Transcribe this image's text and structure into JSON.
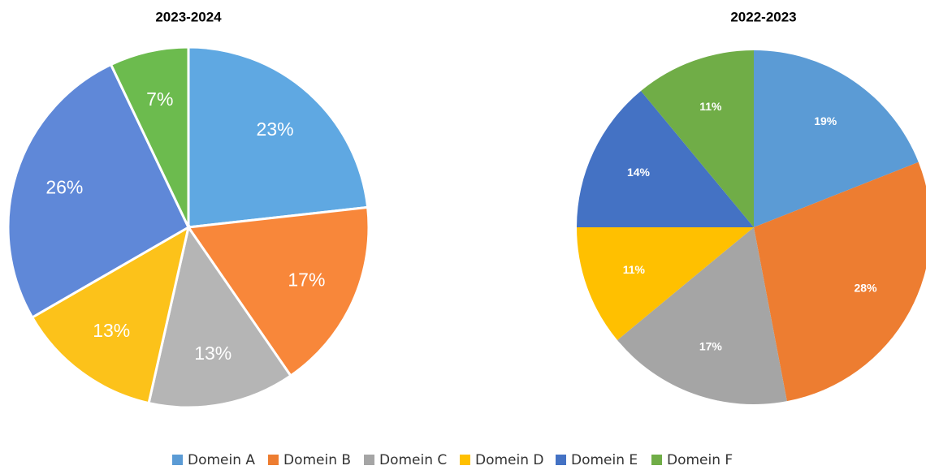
{
  "chart_data": [
    {
      "type": "pie",
      "title": "2023-2024",
      "categories": [
        "Domein A",
        "Domein B",
        "Domein C",
        "Domein D",
        "Domein E",
        "Domein F"
      ],
      "values": [
        23,
        17,
        13,
        13,
        26,
        7
      ],
      "value_labels": [
        "23%",
        "17%",
        "13%",
        "13%",
        "26%",
        "7%"
      ],
      "colors": [
        "#5fa8e2",
        "#f8873a",
        "#b5b5b5",
        "#fcc21a",
        "#5f88d8",
        "#6cbb4e"
      ]
    },
    {
      "type": "pie",
      "title": "2022-2023",
      "categories": [
        "Domein A",
        "Domein B",
        "Domein C",
        "Domein D",
        "Domein E",
        "Domein F"
      ],
      "values": [
        19,
        28,
        17,
        11,
        14,
        11
      ],
      "value_labels": [
        "19%",
        "28%",
        "17%",
        "11%",
        "14%",
        "11%"
      ],
      "colors": [
        "#5b9bd5",
        "#ed7d31",
        "#a5a5a5",
        "#ffc000",
        "#4472c4",
        "#70ad47"
      ]
    }
  ]
}
